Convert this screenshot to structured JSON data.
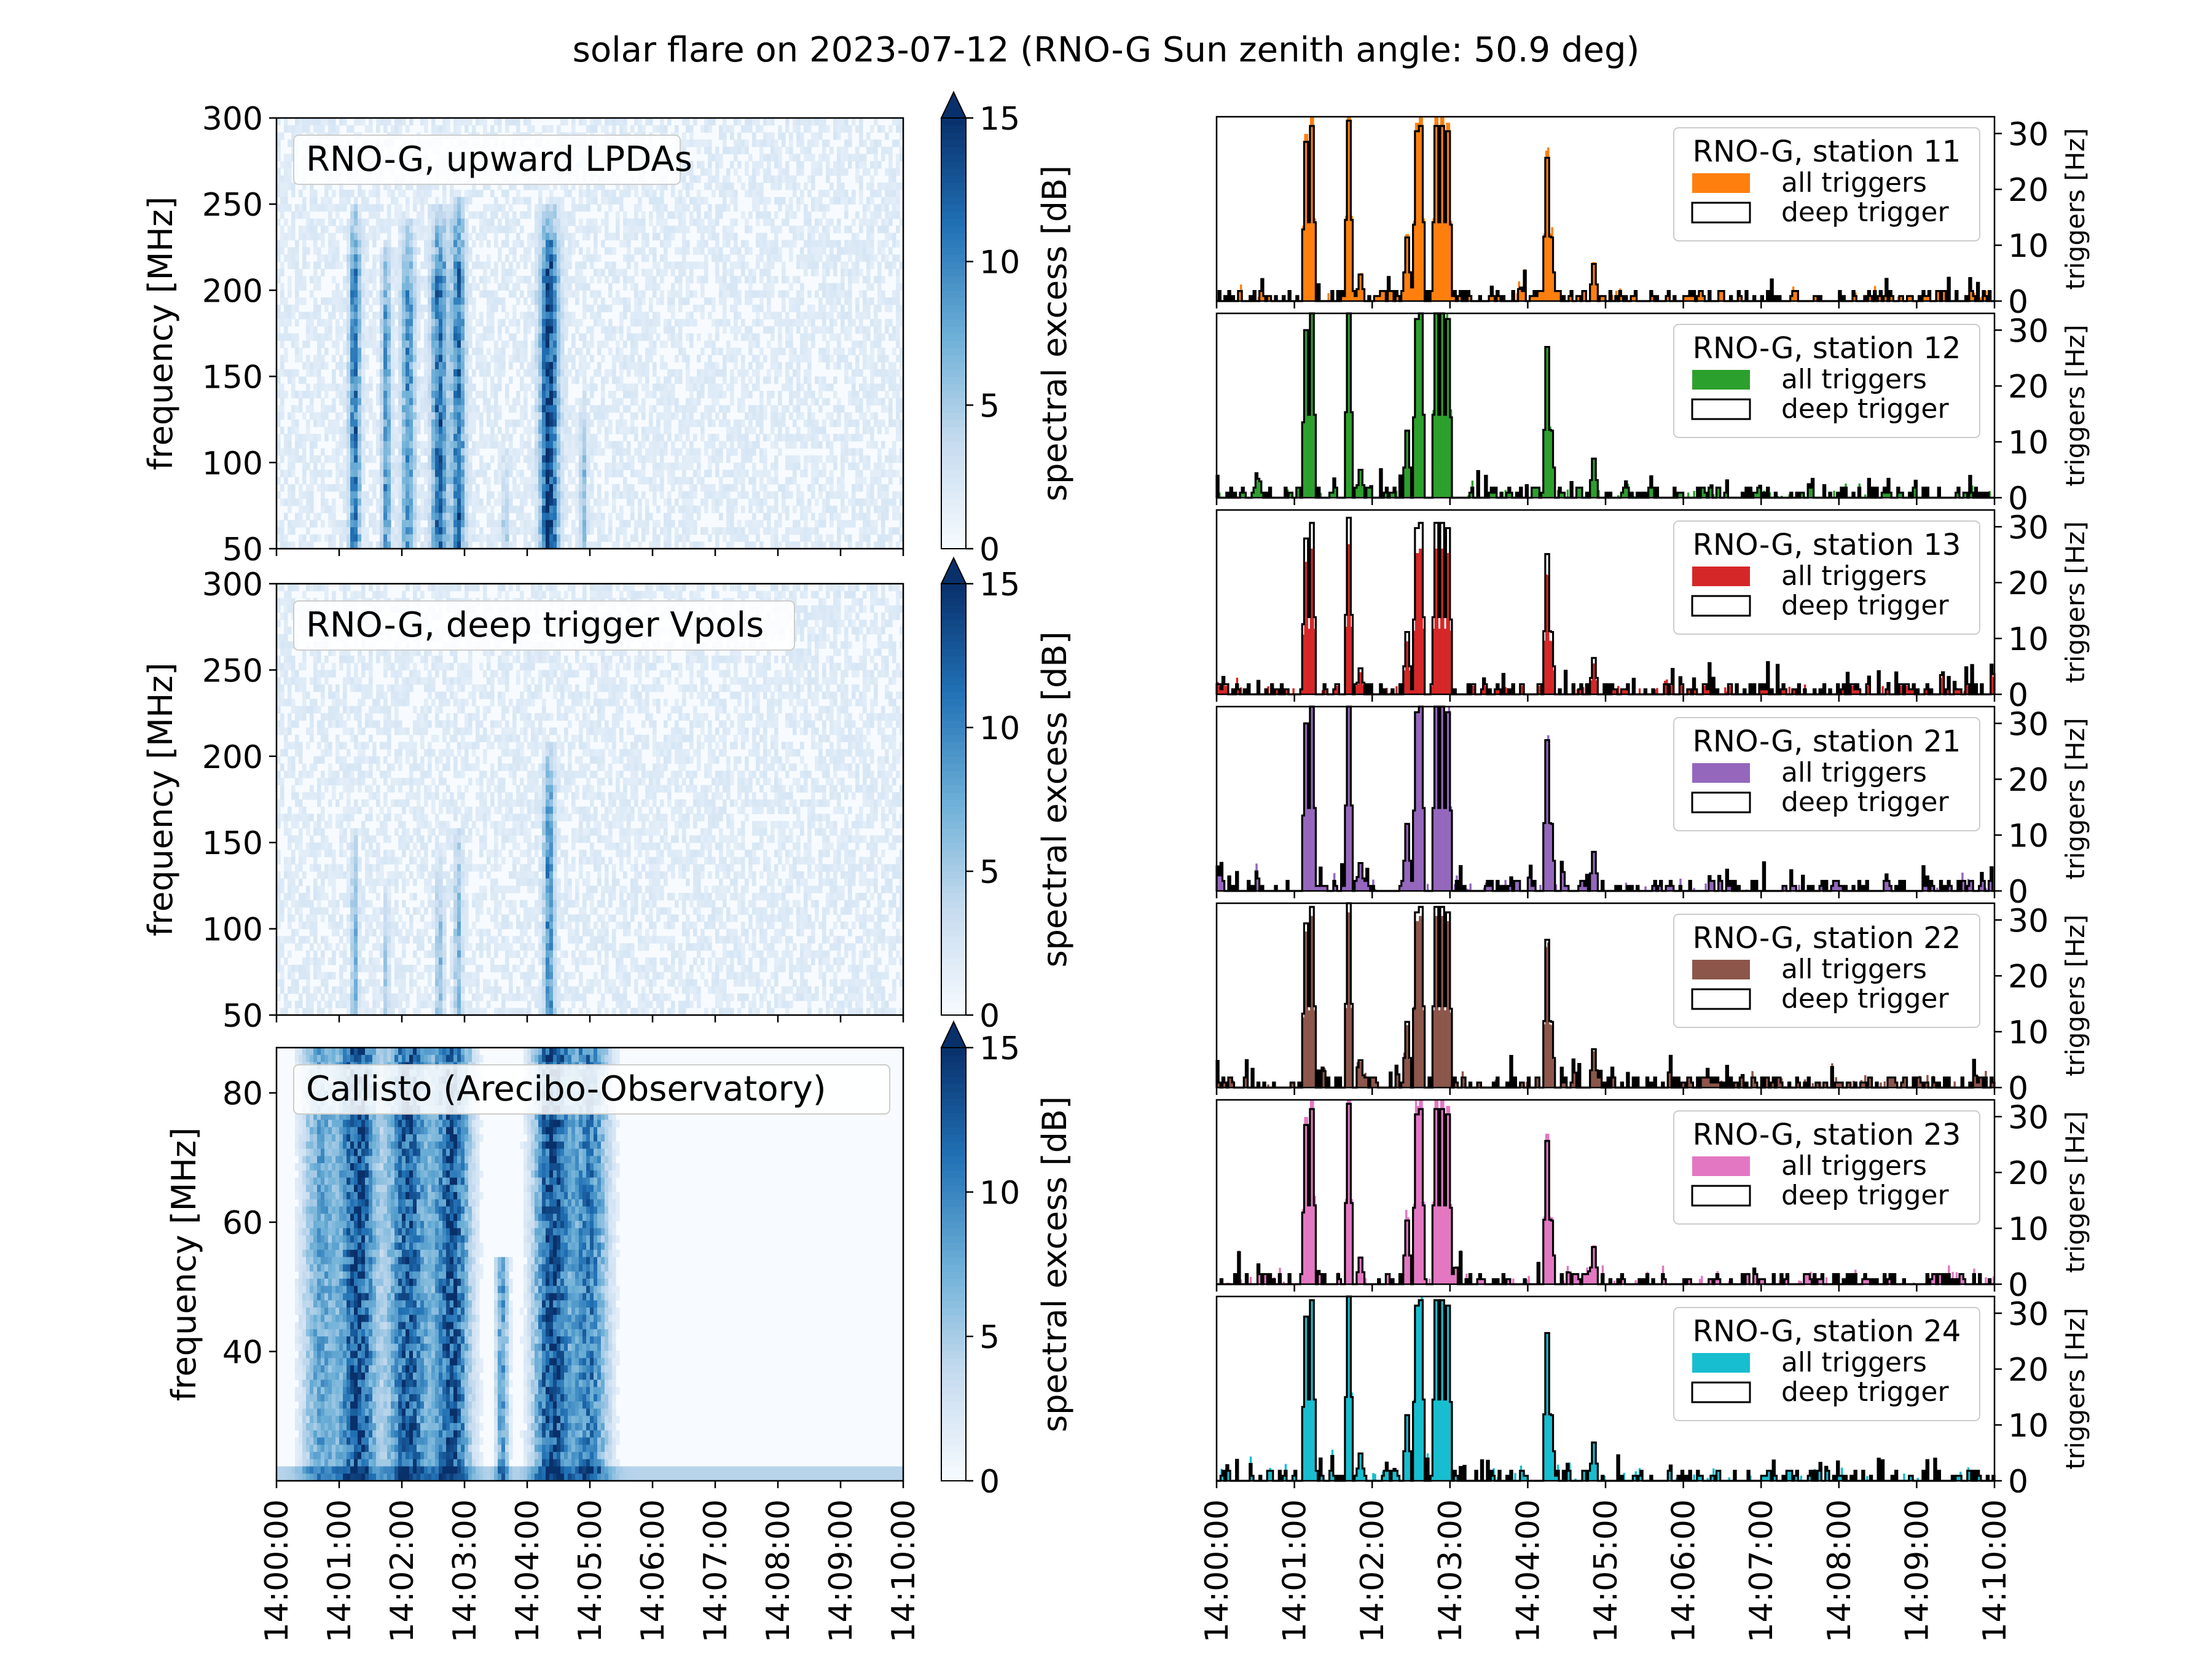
{
  "figure": {
    "title": "solar flare on 2023-07-12 (RNO-G Sun zenith angle: 50.9 deg)"
  },
  "time_ticks": [
    "14:00:00",
    "14:01:00",
    "14:02:00",
    "14:03:00",
    "14:04:00",
    "14:05:00",
    "14:06:00",
    "14:07:00",
    "14:08:00",
    "14:09:00",
    "14:10:00"
  ],
  "chart_data": [
    {
      "type": "heatmap",
      "label": "RNO-G, upward LPDAs",
      "ylabel": "frequency [MHz]",
      "ylim": [
        50,
        300
      ],
      "yticks": [
        50,
        100,
        150,
        200,
        250,
        300
      ],
      "xlim": [
        0,
        10
      ],
      "colorbar": {
        "label": "spectral excess [dB]",
        "range": [
          0,
          15
        ],
        "ticks": [
          0,
          5,
          10,
          15
        ],
        "extend": "max",
        "colormap": "Blues"
      },
      "bursts": [
        {
          "t": 1.25,
          "width": 0.1,
          "fmax": 250,
          "strength": 0.75
        },
        {
          "t": 1.75,
          "width": 0.08,
          "fmax": 230,
          "strength": 0.55
        },
        {
          "t": 2.1,
          "width": 0.12,
          "fmax": 240,
          "strength": 0.6
        },
        {
          "t": 2.6,
          "width": 0.15,
          "fmax": 250,
          "strength": 0.75
        },
        {
          "t": 2.9,
          "width": 0.12,
          "fmax": 255,
          "strength": 0.75
        },
        {
          "t": 3.65,
          "width": 0.05,
          "fmax": 110,
          "strength": 0.35
        },
        {
          "t": 4.35,
          "width": 0.17,
          "fmax": 250,
          "strength": 0.95
        },
        {
          "t": 4.9,
          "width": 0.06,
          "fmax": 140,
          "strength": 0.35
        }
      ]
    },
    {
      "type": "heatmap",
      "label": "RNO-G, deep trigger Vpols",
      "ylabel": "frequency [MHz]",
      "ylim": [
        50,
        300
      ],
      "yticks": [
        50,
        100,
        150,
        200,
        250,
        300
      ],
      "xlim": [
        0,
        10
      ],
      "colorbar": {
        "label": "spectral excess [dB]",
        "range": [
          0,
          15
        ],
        "ticks": [
          0,
          5,
          10,
          15
        ],
        "extend": "max",
        "colormap": "Blues"
      },
      "bursts": [
        {
          "t": 1.25,
          "width": 0.06,
          "fmax": 160,
          "strength": 0.45
        },
        {
          "t": 1.75,
          "width": 0.05,
          "fmax": 130,
          "strength": 0.3
        },
        {
          "t": 2.6,
          "width": 0.08,
          "fmax": 140,
          "strength": 0.35
        },
        {
          "t": 2.9,
          "width": 0.07,
          "fmax": 160,
          "strength": 0.4
        },
        {
          "t": 4.35,
          "width": 0.1,
          "fmax": 210,
          "strength": 0.6
        }
      ]
    },
    {
      "type": "heatmap",
      "label": "Callisto (Arecibo-Observatory)",
      "ylabel": "frequency [MHz]",
      "ylim": [
        20,
        87
      ],
      "yticks": [
        40,
        60,
        80
      ],
      "xlim": [
        0,
        10
      ],
      "colorbar": {
        "label": "spectral excess [dB]",
        "range": [
          0,
          15
        ],
        "ticks": [
          0,
          5,
          10,
          15
        ],
        "extend": "max",
        "colormap": "Blues"
      },
      "bursts": [
        {
          "t": 0.7,
          "width": 0.35,
          "fmax": 87,
          "strength": 0.55
        },
        {
          "t": 1.3,
          "width": 0.35,
          "fmax": 87,
          "strength": 1.0
        },
        {
          "t": 2.1,
          "width": 0.4,
          "fmax": 87,
          "strength": 0.9
        },
        {
          "t": 2.8,
          "width": 0.35,
          "fmax": 87,
          "strength": 0.95
        },
        {
          "t": 3.6,
          "width": 0.12,
          "fmax": 55,
          "strength": 0.6
        },
        {
          "t": 4.4,
          "width": 0.35,
          "fmax": 87,
          "strength": 1.0
        },
        {
          "t": 5.0,
          "width": 0.35,
          "fmax": 87,
          "strength": 0.75
        }
      ]
    }
  ],
  "trigger_panels": {
    "type": "bar",
    "ylabel": "triggers [Hz]",
    "ylim": [
      0,
      33
    ],
    "yticks": [
      0,
      10,
      20,
      30
    ],
    "xlim": [
      0,
      10
    ],
    "legend": {
      "placement": "top-right",
      "all_label": "all triggers",
      "deep_label": "deep trigger"
    },
    "peaks_deep": [
      {
        "t": 1.15,
        "v": 30
      },
      {
        "t": 1.22,
        "v": 33
      },
      {
        "t": 1.7,
        "v": 34
      },
      {
        "t": 1.85,
        "v": 5
      },
      {
        "t": 2.45,
        "v": 12
      },
      {
        "t": 2.57,
        "v": 32
      },
      {
        "t": 2.63,
        "v": 33
      },
      {
        "t": 2.82,
        "v": 33
      },
      {
        "t": 2.9,
        "v": 33
      },
      {
        "t": 2.98,
        "v": 32
      },
      {
        "t": 4.25,
        "v": 27
      },
      {
        "t": 4.3,
        "v": 12
      },
      {
        "t": 4.85,
        "v": 7
      }
    ],
    "stations": [
      {
        "name": "RNO-G, station 11",
        "color": "#ff7f0e",
        "all_scale": 1.05,
        "deep_scale": 0.95
      },
      {
        "name": "RNO-G, station 12",
        "color": "#2ca02c",
        "all_scale": 1.0,
        "deep_scale": 1.0
      },
      {
        "name": "RNO-G, station 13",
        "color": "#d62728",
        "all_scale": 0.85,
        "deep_scale": 0.93
      },
      {
        "name": "RNO-G, station 21",
        "color": "#9467bd",
        "all_scale": 1.0,
        "deep_scale": 1.0
      },
      {
        "name": "RNO-G, station 22",
        "color": "#8c564b",
        "all_scale": 0.95,
        "deep_scale": 0.98
      },
      {
        "name": "RNO-G, station 23",
        "color": "#e377c2",
        "all_scale": 1.05,
        "deep_scale": 0.95
      },
      {
        "name": "RNO-G, station 24",
        "color": "#17becf",
        "all_scale": 1.0,
        "deep_scale": 0.98
      }
    ]
  }
}
